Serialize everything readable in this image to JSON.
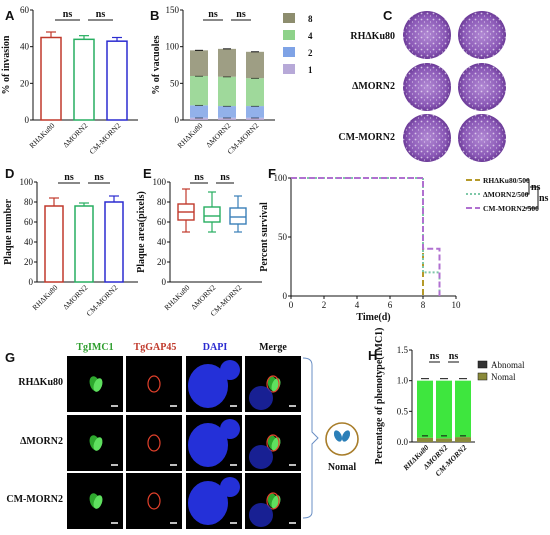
{
  "panels": {
    "A": "A",
    "B": "B",
    "C": "C",
    "D": "D",
    "E": "E",
    "F": "F",
    "G": "G",
    "H": "H"
  },
  "panel_c": {
    "rows": [
      "RHΔKu80",
      "ΔMORN2",
      "CM-MORN2"
    ]
  },
  "panel_g": {
    "columns": [
      "TgIMC1",
      "TgGAP45",
      "DAPI",
      "Merge"
    ],
    "rows": [
      "RHΔKu80",
      "ΔMORN2",
      "CM-MORN2"
    ],
    "side_label": "Nomal"
  },
  "colors": {
    "red": "#c0392b",
    "green": "#27ae60",
    "blue": "#2b2bd0",
    "a1": "#b7a9d8",
    "a2": "#7fa3e6",
    "a4": "#8ed28a",
    "a8": "#8d8d6e",
    "bright_green": "#3ee63e",
    "olive": "#8a8a3a",
    "dark": "#333333"
  },
  "chart_data": [
    {
      "panel": "A",
      "type": "bar",
      "ylabel": "% of invasion",
      "ylim": [
        0,
        60
      ],
      "yticks": [
        0,
        20,
        40,
        60
      ],
      "categories": [
        "RHΔKu80",
        "ΔMORN2",
        "CM-MORN2"
      ],
      "values": [
        45,
        44,
        43
      ],
      "errors": [
        3,
        2,
        2
      ],
      "annotations": [
        "ns",
        "ns"
      ]
    },
    {
      "panel": "B",
      "type": "bar",
      "stacked": true,
      "ylabel": "% of vacuoles",
      "ylim": [
        0,
        150
      ],
      "yticks": [
        0,
        50,
        100,
        150
      ],
      "categories": [
        "RHΔKu80",
        "ΔMORN2",
        "CM-MORN2"
      ],
      "legend": [
        "8",
        "4",
        "2",
        "1"
      ],
      "series": [
        {
          "name": "1",
          "values": [
            3,
            3,
            3
          ]
        },
        {
          "name": "2",
          "values": [
            17,
            16,
            16
          ]
        },
        {
          "name": "4",
          "values": [
            40,
            40,
            38
          ]
        },
        {
          "name": "8",
          "values": [
            35,
            38,
            36
          ]
        }
      ],
      "annotations": [
        "ns",
        "ns"
      ]
    },
    {
      "panel": "D",
      "type": "bar",
      "ylabel": "Plaque number",
      "ylim": [
        0,
        100
      ],
      "yticks": [
        0,
        20,
        40,
        60,
        80,
        100
      ],
      "categories": [
        "RHΔKu80",
        "ΔMORN2",
        "CM-MORN2"
      ],
      "values": [
        76,
        76,
        80
      ],
      "errors": [
        8,
        3,
        6
      ],
      "annotations": [
        "ns",
        "ns"
      ]
    },
    {
      "panel": "E",
      "type": "box",
      "ylabel": "Plaque area(pixels)",
      "ylim": [
        0,
        100
      ],
      "yticks": [
        0,
        20,
        40,
        60,
        80,
        100
      ],
      "categories": [
        "RHΔKu80",
        "ΔMORN2",
        "CM-MORN2"
      ],
      "boxes": [
        {
          "min": 50,
          "q1": 62,
          "median": 70,
          "q3": 78,
          "max": 93
        },
        {
          "min": 50,
          "q1": 60,
          "median": 66,
          "q3": 75,
          "max": 90
        },
        {
          "min": 50,
          "q1": 58,
          "median": 65,
          "q3": 74,
          "max": 86
        }
      ],
      "annotations": [
        "ns",
        "ns"
      ]
    },
    {
      "panel": "F",
      "type": "line",
      "step": true,
      "xlabel": "Time(d)",
      "ylabel": "Percent survival",
      "xlim": [
        0,
        10
      ],
      "ylim": [
        0,
        100
      ],
      "xticks": [
        0,
        2,
        4,
        6,
        8,
        10
      ],
      "yticks": [
        0,
        50,
        100
      ],
      "series": [
        {
          "name": "RHΔKu80/500",
          "x": [
            0,
            8,
            8
          ],
          "y": [
            100,
            100,
            0
          ]
        },
        {
          "name": "ΔMORN2/500",
          "x": [
            0,
            8,
            8,
            9,
            9
          ],
          "y": [
            100,
            100,
            20,
            20,
            0
          ]
        },
        {
          "name": "CM-MORN2/500",
          "x": [
            0,
            8,
            8,
            9,
            9
          ],
          "y": [
            100,
            100,
            40,
            40,
            0
          ]
        }
      ],
      "annotations": [
        "ns",
        "ns"
      ]
    },
    {
      "panel": "H",
      "type": "bar",
      "stacked": true,
      "ylabel": "Percentage of phenotype(IMC1)",
      "ylim": [
        0,
        1.5
      ],
      "yticks": [
        0,
        0.5,
        1.0,
        1.5
      ],
      "categories": [
        "RHΔKu80",
        "ΔMORN2",
        "CM-MORN2"
      ],
      "legend": [
        "Abnomal",
        "Nomal"
      ],
      "series": [
        {
          "name": "Nomal",
          "values": [
            0.93,
            0.94,
            0.92
          ]
        },
        {
          "name": "Abnomal",
          "values": [
            0.07,
            0.06,
            0.08
          ]
        }
      ],
      "annotations": [
        "ns",
        "ns"
      ]
    }
  ]
}
